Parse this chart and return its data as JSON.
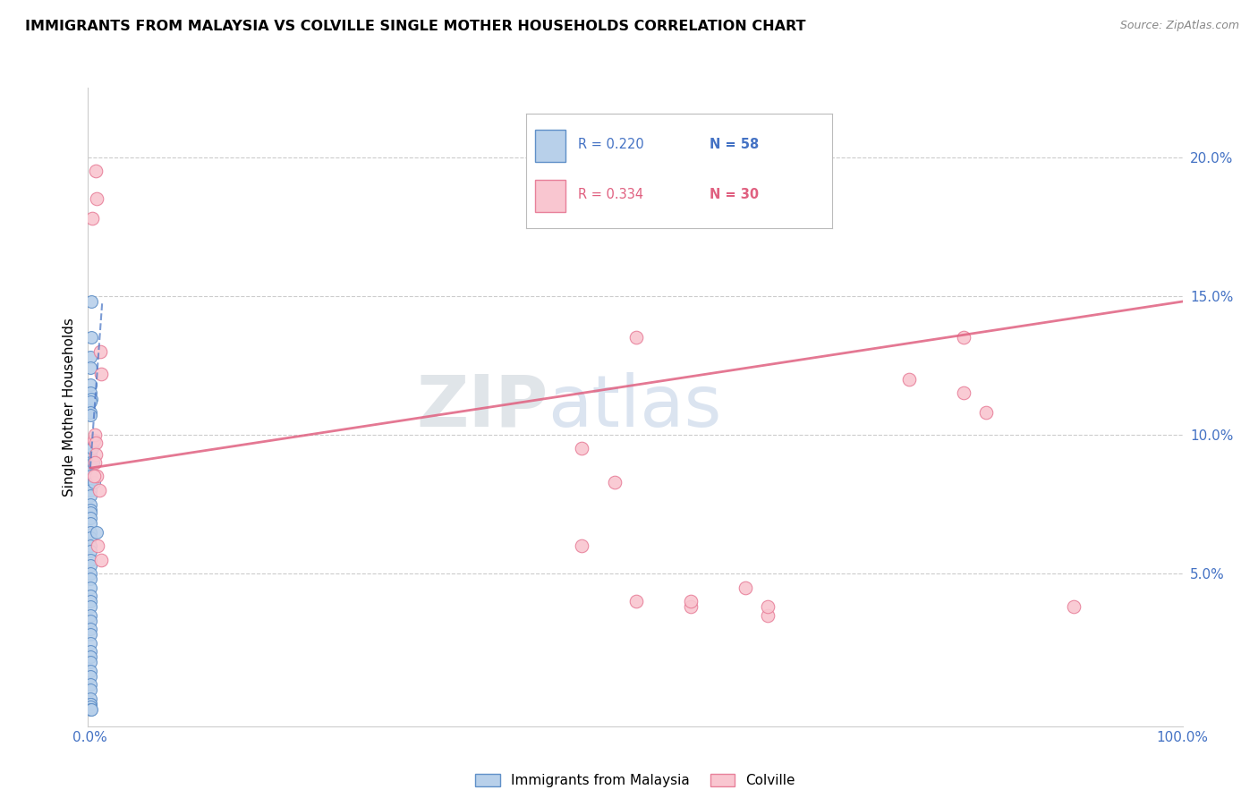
{
  "title": "IMMIGRANTS FROM MALAYSIA VS COLVILLE SINGLE MOTHER HOUSEHOLDS CORRELATION CHART",
  "source": "Source: ZipAtlas.com",
  "ylabel": "Single Mother Households",
  "right_yticklabels": [
    "",
    "5.0%",
    "10.0%",
    "15.0%",
    "20.0%"
  ],
  "right_yticks": [
    0.0,
    0.05,
    0.1,
    0.15,
    0.2
  ],
  "watermark_zip": "ZIP",
  "watermark_atlas": "atlas",
  "legend1_r": "0.220",
  "legend1_n": "58",
  "legend2_r": "0.334",
  "legend2_n": "30",
  "blue_color": "#b8d0ea",
  "pink_color": "#f9c6d0",
  "blue_edge_color": "#6090c8",
  "pink_edge_color": "#e8809a",
  "blue_line_color": "#4472c4",
  "pink_line_color": "#e06080",
  "axis_color": "#4472c4",
  "grid_color": "#cccccc",
  "blue_scatter": [
    [
      0.0008,
      0.148
    ],
    [
      0.001,
      0.135
    ],
    [
      0.0005,
      0.128
    ],
    [
      0.0003,
      0.124
    ],
    [
      0.0005,
      0.118
    ],
    [
      0.0004,
      0.115
    ],
    [
      0.0006,
      0.113
    ],
    [
      0.0003,
      0.112
    ],
    [
      0.0002,
      0.108
    ],
    [
      0.0004,
      0.107
    ],
    [
      0.0002,
      0.095
    ],
    [
      0.0003,
      0.093
    ],
    [
      0.0005,
      0.09
    ],
    [
      0.0004,
      0.088
    ],
    [
      0.0002,
      0.085
    ],
    [
      0.0005,
      0.082
    ],
    [
      0.0003,
      0.082
    ],
    [
      0.0005,
      0.08
    ],
    [
      0.0002,
      0.078
    ],
    [
      0.0003,
      0.075
    ],
    [
      0.0002,
      0.073
    ],
    [
      0.0002,
      0.072
    ],
    [
      0.0003,
      0.07
    ],
    [
      0.0002,
      0.068
    ],
    [
      0.0002,
      0.065
    ],
    [
      0.0002,
      0.063
    ],
    [
      0.0003,
      0.06
    ],
    [
      0.0004,
      0.058
    ],
    [
      0.0002,
      0.055
    ],
    [
      0.0002,
      0.053
    ],
    [
      0.0002,
      0.05
    ],
    [
      0.0003,
      0.048
    ],
    [
      0.0002,
      0.045
    ],
    [
      0.0002,
      0.042
    ],
    [
      0.0002,
      0.04
    ],
    [
      0.0003,
      0.038
    ],
    [
      0.0002,
      0.035
    ],
    [
      0.0002,
      0.033
    ],
    [
      0.0002,
      0.03
    ],
    [
      0.0002,
      0.028
    ],
    [
      0.0002,
      0.025
    ],
    [
      0.0002,
      0.022
    ],
    [
      0.0003,
      0.02
    ],
    [
      0.0002,
      0.018
    ],
    [
      0.0002,
      0.015
    ],
    [
      0.0002,
      0.013
    ],
    [
      0.0002,
      0.01
    ],
    [
      0.0002,
      0.008
    ],
    [
      0.0002,
      0.005
    ],
    [
      0.0002,
      0.003
    ],
    [
      0.0005,
      0.003
    ],
    [
      0.0003,
      0.002
    ],
    [
      0.0004,
      0.001
    ],
    [
      0.0008,
      0.001
    ],
    [
      0.003,
      0.083
    ],
    [
      0.006,
      0.065
    ],
    [
      0.0025,
      0.09
    ],
    [
      0.0015,
      0.095
    ]
  ],
  "pink_scatter": [
    [
      0.002,
      0.178
    ],
    [
      0.005,
      0.195
    ],
    [
      0.006,
      0.185
    ],
    [
      0.009,
      0.13
    ],
    [
      0.01,
      0.122
    ],
    [
      0.003,
      0.098
    ],
    [
      0.004,
      0.1
    ],
    [
      0.005,
      0.097
    ],
    [
      0.006,
      0.085
    ],
    [
      0.007,
      0.06
    ],
    [
      0.005,
      0.093
    ],
    [
      0.004,
      0.09
    ],
    [
      0.003,
      0.085
    ],
    [
      0.008,
      0.08
    ],
    [
      0.01,
      0.055
    ],
    [
      0.45,
      0.095
    ],
    [
      0.5,
      0.135
    ],
    [
      0.45,
      0.06
    ],
    [
      0.48,
      0.083
    ],
    [
      0.5,
      0.04
    ],
    [
      0.55,
      0.038
    ],
    [
      0.6,
      0.045
    ],
    [
      0.62,
      0.035
    ],
    [
      0.75,
      0.12
    ],
    [
      0.8,
      0.135
    ],
    [
      0.8,
      0.115
    ],
    [
      0.82,
      0.108
    ],
    [
      0.55,
      0.04
    ],
    [
      0.62,
      0.038
    ],
    [
      0.9,
      0.038
    ]
  ],
  "blue_trend_x": [
    0.0,
    0.011
  ],
  "blue_trend_y": [
    0.088,
    0.148
  ],
  "pink_trend_x": [
    0.0,
    1.0
  ],
  "pink_trend_y": [
    0.088,
    0.148
  ],
  "xlim": [
    -0.002,
    1.0
  ],
  "ylim": [
    -0.005,
    0.225
  ]
}
